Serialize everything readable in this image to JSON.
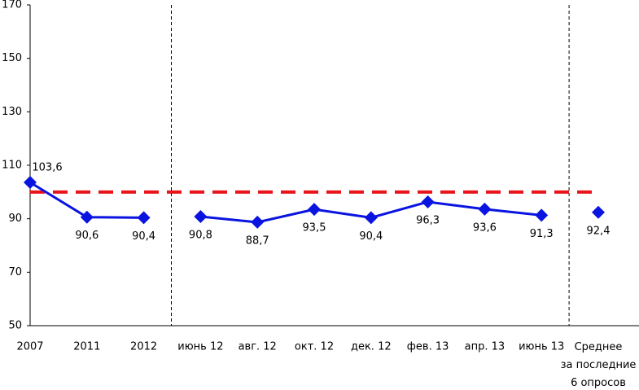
{
  "chart_data": {
    "type": "line",
    "categories": [
      "2007",
      "2011",
      "2012",
      "июнь 12",
      "авг. 12",
      "окт. 12",
      "дек. 12",
      "фев. 13",
      "апр. 13",
      "июнь 13",
      "Среднее\nза последние\n6 опросов"
    ],
    "series": [
      {
        "color": "#0a14e0",
        "values": [
          103.6,
          90.6,
          90.4,
          null,
          null,
          null,
          null,
          null,
          null,
          null,
          null
        ],
        "value_labels": [
          "103,6",
          "90,6",
          "90,4",
          null,
          null,
          null,
          null,
          null,
          null,
          null,
          null
        ]
      },
      {
        "color": "#0a14e0",
        "values": [
          null,
          null,
          null,
          90.8,
          88.7,
          93.5,
          90.4,
          96.3,
          93.6,
          91.3,
          null
        ],
        "value_labels": [
          null,
          null,
          null,
          "90,8",
          "88,7",
          "93,5",
          "90,4",
          "96,3",
          "93,6",
          "91,3",
          null
        ]
      },
      {
        "color": "#0a14e0",
        "values": [
          null,
          null,
          null,
          null,
          null,
          null,
          null,
          null,
          null,
          null,
          92.4
        ],
        "value_labels": [
          null,
          null,
          null,
          null,
          null,
          null,
          null,
          null,
          null,
          null,
          "92,4"
        ]
      }
    ],
    "reference_line": {
      "value": 100,
      "color": "#e8141a"
    },
    "ylim": [
      50,
      170
    ],
    "yticks": [
      50,
      70,
      90,
      110,
      130,
      150,
      170
    ]
  }
}
